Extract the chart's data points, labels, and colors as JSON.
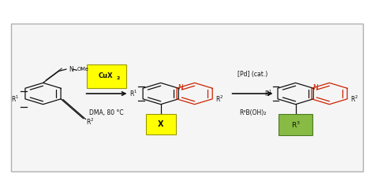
{
  "fig_width": 4.74,
  "fig_height": 2.48,
  "dpi": 100,
  "bg_color": "#ffffff",
  "border_facecolor": "#f5f5f5",
  "border_edgecolor": "#b0b0b0",
  "red_color": "#cc2200",
  "black_color": "#111111",
  "yellow_box_color": "#ffff00",
  "yellow_edge_color": "#999900",
  "green_box_color": "#88bb44",
  "green_edge_color": "#4a7a20",
  "N_label": "N",
  "reagent1_main": "CuX",
  "reagent1_sub": "2",
  "reagent1_below": "DMA, 80 °C",
  "reagent2_above": "[Pd] (cat.)",
  "reagent2_below": "R³B(OH)₂"
}
